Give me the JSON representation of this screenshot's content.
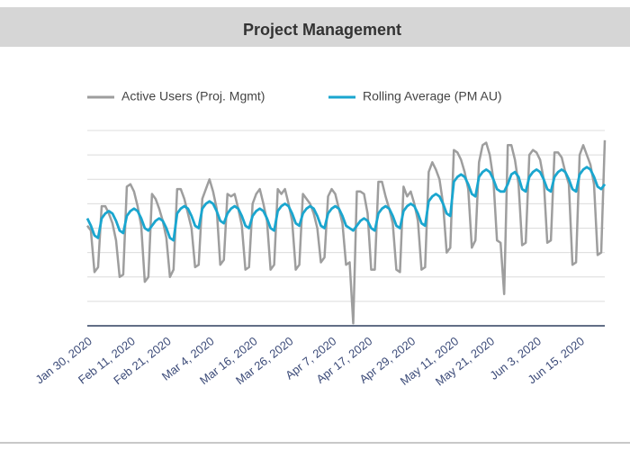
{
  "chart_data": {
    "type": "line",
    "title": "Project Management",
    "categories": [
      "Jan 30, 2020",
      null,
      null,
      null,
      null,
      null,
      null,
      null,
      null,
      null,
      null,
      null,
      "Feb 11, 2020",
      null,
      null,
      null,
      null,
      null,
      null,
      null,
      null,
      null,
      "Feb 21, 2020",
      null,
      null,
      null,
      null,
      null,
      null,
      null,
      null,
      null,
      null,
      null,
      "Mar 4, 2020",
      null,
      null,
      null,
      null,
      null,
      null,
      null,
      null,
      null,
      null,
      null,
      "Mar 16, 2020",
      null,
      null,
      null,
      null,
      null,
      null,
      null,
      null,
      null,
      "Mar 26, 2020",
      null,
      null,
      null,
      null,
      null,
      null,
      null,
      null,
      null,
      null,
      null,
      "Apr 7, 2020",
      null,
      null,
      null,
      null,
      null,
      null,
      null,
      null,
      null,
      "Apr 17, 2020",
      null,
      null,
      null,
      null,
      null,
      null,
      null,
      null,
      null,
      null,
      null,
      "Apr 29, 2020",
      null,
      null,
      null,
      null,
      null,
      null,
      null,
      null,
      null,
      null,
      null,
      "May 11, 2020",
      null,
      null,
      null,
      null,
      null,
      null,
      null,
      null,
      null,
      "May 21, 2020",
      null,
      null,
      null,
      null,
      null,
      null,
      null,
      null,
      null,
      null,
      null,
      null,
      "Jun 3, 2020",
      null,
      null,
      null,
      null,
      null,
      null,
      null,
      null,
      null,
      null,
      null,
      "Jun 15, 2020",
      null,
      null,
      null,
      null,
      null,
      null,
      null
    ],
    "series": [
      {
        "name": "Active Users (Proj. Mgmt)",
        "color": "#9e9e9e",
        "values": [
          4.1,
          3.9,
          2.2,
          2.4,
          4.9,
          4.9,
          4.6,
          4.2,
          3.5,
          2.0,
          2.1,
          5.7,
          5.8,
          5.5,
          4.9,
          4.1,
          1.8,
          2.0,
          5.4,
          5.2,
          4.8,
          4.3,
          3.6,
          2.0,
          2.3,
          5.6,
          5.6,
          5.2,
          4.6,
          4.0,
          2.4,
          2.5,
          5.2,
          5.6,
          6.0,
          5.5,
          4.8,
          2.5,
          2.7,
          5.4,
          5.3,
          5.4,
          4.8,
          4.1,
          2.3,
          2.4,
          5.0,
          5.4,
          5.6,
          5.0,
          4.3,
          2.3,
          2.5,
          5.6,
          5.4,
          5.6,
          5.0,
          4.3,
          2.3,
          2.5,
          5.4,
          5.2,
          5.0,
          4.6,
          4.0,
          2.6,
          2.8,
          5.3,
          5.6,
          5.4,
          4.8,
          4.2,
          2.5,
          2.6,
          0.1,
          5.5,
          5.5,
          5.4,
          4.6,
          2.3,
          2.3,
          5.9,
          5.9,
          5.3,
          4.8,
          4.2,
          2.3,
          2.2,
          5.7,
          5.3,
          5.5,
          5.0,
          4.3,
          2.3,
          2.4,
          6.3,
          6.7,
          6.4,
          6.0,
          5.0,
          3.0,
          3.2,
          7.2,
          7.1,
          6.8,
          6.3,
          5.6,
          3.2,
          3.5,
          6.7,
          7.4,
          7.5,
          7.0,
          6.0,
          3.5,
          3.4,
          1.3,
          7.4,
          7.4,
          6.8,
          5.8,
          3.3,
          3.4,
          7.0,
          7.2,
          7.1,
          6.8,
          6.0,
          3.4,
          3.5,
          7.1,
          7.1,
          6.9,
          6.3,
          5.8,
          2.5,
          2.6,
          7.0,
          7.4,
          7.0,
          6.6,
          5.8,
          2.9,
          3.0,
          7.6
        ]
      },
      {
        "name": "Rolling Average (PM AU)",
        "color": "#1aa6cf",
        "values": [
          4.4,
          4.1,
          3.7,
          3.6,
          4.4,
          4.6,
          4.7,
          4.6,
          4.3,
          3.9,
          3.8,
          4.5,
          4.7,
          4.8,
          4.7,
          4.4,
          4.0,
          3.9,
          4.1,
          4.3,
          4.4,
          4.3,
          4.0,
          3.6,
          3.5,
          4.6,
          4.8,
          4.9,
          4.8,
          4.5,
          4.1,
          4.0,
          4.8,
          5.0,
          5.1,
          5.0,
          4.7,
          4.3,
          4.2,
          4.6,
          4.8,
          4.9,
          4.8,
          4.5,
          4.1,
          4.0,
          4.5,
          4.7,
          4.8,
          4.7,
          4.4,
          4.0,
          3.9,
          4.7,
          4.9,
          5.0,
          4.9,
          4.6,
          4.2,
          4.1,
          4.6,
          4.8,
          4.9,
          4.8,
          4.5,
          4.1,
          4.0,
          4.6,
          4.8,
          4.9,
          4.8,
          4.5,
          4.1,
          4.0,
          3.9,
          4.1,
          4.3,
          4.4,
          4.3,
          4.0,
          3.9,
          4.6,
          4.8,
          4.9,
          4.8,
          4.5,
          4.1,
          4.0,
          4.7,
          4.9,
          5.0,
          4.9,
          4.6,
          4.2,
          4.1,
          5.1,
          5.3,
          5.4,
          5.3,
          5.0,
          4.6,
          4.5,
          5.9,
          6.1,
          6.2,
          6.1,
          5.8,
          5.4,
          5.3,
          6.1,
          6.3,
          6.4,
          6.3,
          6.0,
          5.6,
          5.5,
          5.5,
          5.8,
          6.2,
          6.3,
          6.1,
          5.6,
          5.5,
          6.1,
          6.3,
          6.4,
          6.3,
          6.0,
          5.6,
          5.5,
          6.1,
          6.3,
          6.4,
          6.3,
          6.0,
          5.6,
          5.5,
          6.2,
          6.4,
          6.5,
          6.4,
          6.1,
          5.7,
          5.6,
          5.8
        ]
      }
    ],
    "ylim": [
      0,
      8
    ],
    "yticks": [
      0,
      1,
      2,
      3,
      4,
      5,
      6,
      7,
      8
    ],
    "y_tick_labels": false,
    "grid": true
  }
}
